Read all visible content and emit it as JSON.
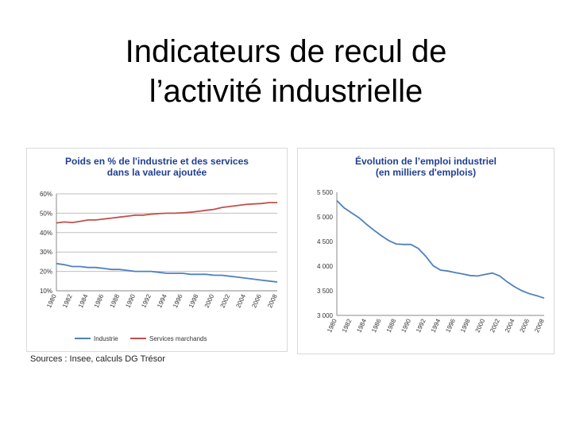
{
  "slide": {
    "title_line1": "Indicateurs de recul de",
    "title_line2": "l’activité industrielle",
    "source": "Sources : Insee, calculs DG Trésor"
  },
  "colors": {
    "industrie": "#4f81bd",
    "services": "#c0504d",
    "title_blue": "#1f3f8f",
    "grid": "#bfbfbf"
  },
  "chart_data": [
    {
      "type": "line",
      "title_line1": "Poids en % de l'industrie et des services",
      "title_line2": "dans la valeur ajoutée",
      "x": [
        1980,
        1981,
        1982,
        1983,
        1984,
        1985,
        1986,
        1987,
        1988,
        1989,
        1990,
        1991,
        1992,
        1993,
        1994,
        1995,
        1996,
        1997,
        1998,
        1999,
        2000,
        2001,
        2002,
        2003,
        2004,
        2005,
        2006,
        2007,
        2008
      ],
      "x_tick_labels": [
        "1980",
        "1982",
        "1984",
        "1986",
        "1988",
        "1990",
        "1992",
        "1994",
        "1996",
        "1998",
        "2000",
        "2002",
        "2004",
        "2006",
        "2008"
      ],
      "y_tick_labels": [
        "10%",
        "20%",
        "30%",
        "40%",
        "50%",
        "60%"
      ],
      "ylim": [
        10,
        60
      ],
      "grid": true,
      "legend_position": "bottom",
      "series": [
        {
          "name": "Industrie",
          "values": [
            24,
            23.5,
            22.5,
            22.5,
            22,
            22,
            21.5,
            21,
            21,
            20.5,
            20,
            20,
            20,
            19.5,
            19,
            19,
            19,
            18.5,
            18.5,
            18.5,
            18,
            18,
            17.5,
            17,
            16.5,
            16,
            15.5,
            15,
            14.5
          ]
        },
        {
          "name": "Services marchands",
          "values": [
            45,
            45.5,
            45.2,
            45.8,
            46.5,
            46.5,
            47,
            47.5,
            48,
            48.5,
            49,
            49,
            49.5,
            49.8,
            50,
            50,
            50.2,
            50.5,
            51,
            51.5,
            52,
            53,
            53.5,
            54,
            54.5,
            54.8,
            55,
            55.5,
            55.5
          ]
        }
      ]
    },
    {
      "type": "line",
      "title_line1": "Évolution de l’emploi industriel",
      "title_line2": "(en milliers d'emplois)",
      "x": [
        1980,
        1981,
        1982,
        1983,
        1984,
        1985,
        1986,
        1987,
        1988,
        1989,
        1990,
        1991,
        1992,
        1993,
        1994,
        1995,
        1996,
        1997,
        1998,
        1999,
        2000,
        2001,
        2002,
        2003,
        2004,
        2005,
        2006,
        2007,
        2008
      ],
      "x_tick_labels": [
        "1980",
        "1982",
        "1984",
        "1986",
        "1988",
        "1990",
        "1992",
        "1994",
        "1996",
        "1998",
        "2000",
        "2002",
        "2004",
        "2006",
        "2008"
      ],
      "y_tick_labels": [
        "3 000",
        "3 500",
        "4 000",
        "4 500",
        "5 000",
        "5 500"
      ],
      "ylim": [
        3000,
        5500
      ],
      "grid": false,
      "series": [
        {
          "name": "",
          "values": [
            5330,
            5180,
            5080,
            4980,
            4850,
            4730,
            4620,
            4520,
            4450,
            4440,
            4440,
            4360,
            4200,
            4010,
            3920,
            3900,
            3870,
            3840,
            3810,
            3800,
            3830,
            3860,
            3800,
            3680,
            3580,
            3500,
            3440,
            3400,
            3350
          ]
        }
      ]
    }
  ]
}
